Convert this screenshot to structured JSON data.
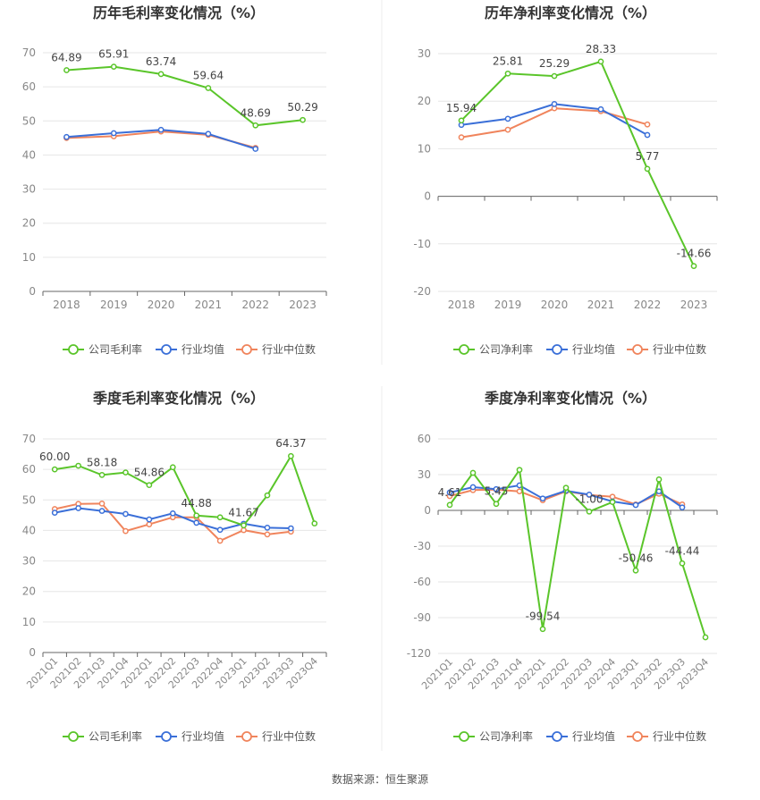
{
  "footer": {
    "source": "数据来源：恒生聚源"
  },
  "colors": {
    "company": "#5ac52a",
    "industry_avg": "#3a6fd8",
    "industry_median": "#f0845c",
    "grid": "#e6e6e6",
    "axis": "#666666",
    "title": "#333333"
  },
  "chart_data": [
    {
      "type": "line",
      "title": "历年毛利率变化情况（%）",
      "categories": [
        "2018",
        "2019",
        "2020",
        "2021",
        "2022",
        "2023"
      ],
      "ylim": [
        0,
        70
      ],
      "yticks": [
        0,
        10,
        20,
        30,
        40,
        50,
        60,
        70
      ],
      "legend_position": "bottom",
      "series": [
        {
          "name": "公司毛利率",
          "color": "#5ac52a",
          "values": [
            64.89,
            65.91,
            63.74,
            59.64,
            48.69,
            50.29
          ],
          "labels": [
            "64.89",
            "65.91",
            "63.74",
            "59.64",
            "48.69",
            "50.29"
          ]
        },
        {
          "name": "行业均值",
          "color": "#3a6fd8",
          "values": [
            45.3,
            46.4,
            47.4,
            46.2,
            41.8,
            null
          ]
        },
        {
          "name": "行业中位数",
          "color": "#f0845c",
          "values": [
            45.0,
            45.5,
            46.9,
            45.9,
            42.1,
            null
          ]
        }
      ]
    },
    {
      "type": "line",
      "title": "历年净利率变化情况（%）",
      "categories": [
        "2018",
        "2019",
        "2020",
        "2021",
        "2022",
        "2023"
      ],
      "ylim": [
        -20,
        30
      ],
      "yticks": [
        -20,
        -10,
        0,
        10,
        20,
        30
      ],
      "legend_position": "bottom",
      "series": [
        {
          "name": "公司净利率",
          "color": "#5ac52a",
          "values": [
            15.94,
            25.81,
            25.29,
            28.33,
            5.77,
            -14.66
          ],
          "labels": [
            "15.94",
            "25.81",
            "25.29",
            "28.33",
            "5.77",
            "-14.66"
          ]
        },
        {
          "name": "行业均值",
          "color": "#3a6fd8",
          "values": [
            15.0,
            16.3,
            19.4,
            18.3,
            12.9,
            null
          ]
        },
        {
          "name": "行业中位数",
          "color": "#f0845c",
          "values": [
            12.4,
            14.0,
            18.5,
            17.9,
            15.1,
            null
          ]
        }
      ]
    },
    {
      "type": "line",
      "title": "季度毛利率变化情况（%）",
      "categories": [
        "2021Q1",
        "2021Q2",
        "2021Q3",
        "2021Q4",
        "2022Q1",
        "2022Q2",
        "2022Q3",
        "2022Q4",
        "2023Q1",
        "2023Q2",
        "2023Q3",
        "2023Q4"
      ],
      "ylim": [
        0,
        70
      ],
      "yticks": [
        0,
        10,
        20,
        30,
        40,
        50,
        60,
        70
      ],
      "legend_position": "bottom",
      "series": [
        {
          "name": "公司毛利率",
          "color": "#5ac52a",
          "values": [
            60.0,
            61.2,
            58.18,
            59.0,
            54.86,
            60.7,
            44.88,
            44.3,
            41.67,
            51.5,
            64.37,
            42.3
          ],
          "labels": [
            "60.00",
            "",
            "58.18",
            "",
            "54.86",
            "",
            "44.88",
            "",
            "41.67",
            "",
            "64.37",
            ""
          ]
        },
        {
          "name": "行业均值",
          "color": "#3a6fd8",
          "values": [
            45.8,
            47.3,
            46.4,
            45.4,
            43.6,
            45.6,
            42.5,
            40.2,
            42.2,
            40.9,
            40.7,
            null
          ]
        },
        {
          "name": "行业中位数",
          "color": "#f0845c",
          "values": [
            47.0,
            48.7,
            48.8,
            39.8,
            42.0,
            44.3,
            44.3,
            36.6,
            40.1,
            38.7,
            39.6,
            null
          ]
        }
      ]
    },
    {
      "type": "line",
      "title": "季度净利率变化情况（%）",
      "categories": [
        "2021Q1",
        "2021Q2",
        "2021Q3",
        "2021Q4",
        "2022Q1",
        "2022Q2",
        "2022Q3",
        "2022Q4",
        "2023Q1",
        "2023Q2",
        "2023Q3",
        "2023Q4"
      ],
      "ylim": [
        -120,
        60
      ],
      "yticks": [
        -120,
        -90,
        -60,
        -30,
        0,
        30,
        60
      ],
      "legend_position": "bottom",
      "series": [
        {
          "name": "公司净利率",
          "color": "#5ac52a",
          "values": [
            4.61,
            31.5,
            5.45,
            34.0,
            -99.54,
            19.0,
            -1.0,
            7.0,
            -50.46,
            26.0,
            -44.44,
            -106.5
          ],
          "labels": [
            "4.61",
            "",
            "5.45",
            "",
            "-99.54",
            "",
            "-1.00",
            "",
            "-50.46",
            "",
            "-44.44",
            ""
          ]
        },
        {
          "name": "行业均值",
          "color": "#3a6fd8",
          "values": [
            15.0,
            19.5,
            17.8,
            21.0,
            10.0,
            16.5,
            13.2,
            7.5,
            4.5,
            16.0,
            2.5,
            null
          ]
        },
        {
          "name": "行业中位数",
          "color": "#f0845c",
          "values": [
            12.0,
            17.0,
            17.5,
            16.0,
            8.5,
            16.0,
            13.0,
            11.5,
            5.0,
            14.0,
            5.0,
            null
          ]
        }
      ]
    }
  ]
}
